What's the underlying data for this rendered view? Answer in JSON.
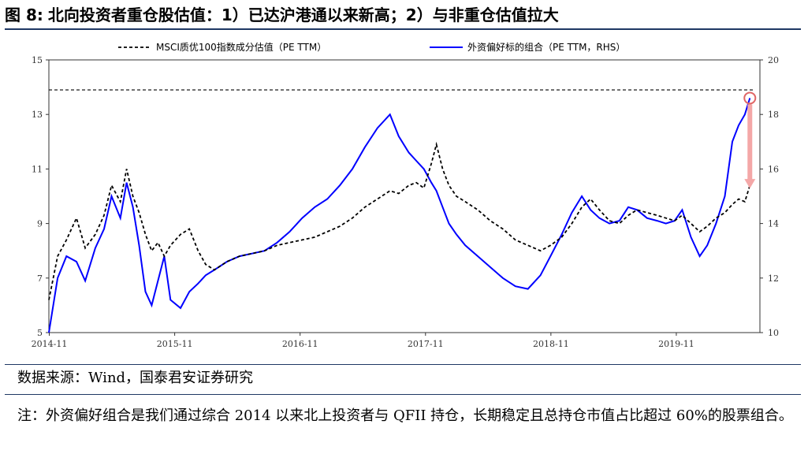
{
  "figure": {
    "number": "图 8:",
    "title": "北向投资者重仓股估值：1）已达沪港通以来新高；2）与非重仓估值拉大"
  },
  "source": "数据来源：Wind，国泰君安证券研究",
  "note": "注：外资偏好组合是我们通过综合 2014 以来北上投资者与 QFII 持仓，长期稳定且总持仓市值占比超过 60%的股票组合。",
  "colors": {
    "msci": "#000000",
    "foreign": "#0000ff",
    "highlight": "#e06666",
    "arrow": "#f4a7a7"
  },
  "chart_data": {
    "type": "line",
    "x_ticks": [
      "2014-11",
      "2015-11",
      "2016-11",
      "2017-11",
      "2018-11",
      "2019-11"
    ],
    "y_left": {
      "min": 5,
      "max": 15,
      "ticks": [
        5,
        7,
        9,
        11,
        13,
        15
      ]
    },
    "y_right": {
      "min": 10,
      "max": 20,
      "ticks": [
        10,
        12,
        14,
        16,
        18,
        20
      ]
    },
    "legend_position": "top",
    "reference_line": {
      "axis": "left",
      "value": 13.9,
      "style": "dashed"
    },
    "series": [
      {
        "name": "MSCI质优100指数成分估值（PE TTM）",
        "axis": "left",
        "style": "dashed",
        "x": [
          2014.83,
          2014.9,
          2014.97,
          2015.05,
          2015.12,
          2015.2,
          2015.27,
          2015.33,
          2015.4,
          2015.45,
          2015.5,
          2015.55,
          2015.6,
          2015.65,
          2015.7,
          2015.75,
          2015.8,
          2015.88,
          2015.95,
          2016.02,
          2016.08,
          2016.15,
          2016.25,
          2016.35,
          2016.45,
          2016.55,
          2016.65,
          2016.75,
          2016.85,
          2016.95,
          2017.05,
          2017.15,
          2017.25,
          2017.35,
          2017.45,
          2017.55,
          2017.62,
          2017.7,
          2017.76,
          2017.82,
          2017.88,
          2017.92,
          2017.97,
          2018.02,
          2018.08,
          2018.15,
          2018.25,
          2018.35,
          2018.45,
          2018.55,
          2018.65,
          2018.75,
          2018.83,
          2018.92,
          2019.0,
          2019.08,
          2019.15,
          2019.22,
          2019.3,
          2019.38,
          2019.45,
          2019.52,
          2019.6,
          2019.68,
          2019.75,
          2019.82,
          2019.88,
          2019.95,
          2020.02,
          2020.08,
          2020.15,
          2020.22,
          2020.28,
          2020.33,
          2020.38,
          2020.42
        ],
        "values": [
          6.2,
          7.8,
          8.4,
          9.2,
          8.1,
          8.6,
          9.3,
          10.4,
          9.8,
          11.0,
          10.0,
          9.4,
          8.6,
          8.0,
          8.3,
          7.8,
          8.2,
          8.6,
          8.8,
          8.0,
          7.5,
          7.3,
          7.6,
          7.8,
          7.9,
          8.0,
          8.2,
          8.3,
          8.4,
          8.5,
          8.7,
          8.9,
          9.2,
          9.6,
          9.9,
          10.2,
          10.1,
          10.4,
          10.5,
          10.3,
          11.2,
          11.9,
          11.0,
          10.4,
          10.0,
          9.8,
          9.5,
          9.1,
          8.8,
          8.4,
          8.2,
          8.0,
          8.2,
          8.5,
          9.0,
          9.6,
          9.9,
          9.5,
          9.1,
          9.0,
          9.3,
          9.5,
          9.4,
          9.3,
          9.2,
          9.1,
          9.3,
          9.0,
          8.7,
          8.9,
          9.2,
          9.4,
          9.7,
          9.9,
          9.8,
          10.4
        ]
      },
      {
        "name": "外资偏好标的组合（PE TTM，RHS）",
        "axis": "right",
        "style": "solid",
        "x": [
          2014.83,
          2014.9,
          2014.97,
          2015.05,
          2015.12,
          2015.2,
          2015.27,
          2015.33,
          2015.4,
          2015.45,
          2015.5,
          2015.55,
          2015.6,
          2015.65,
          2015.7,
          2015.75,
          2015.8,
          2015.88,
          2015.95,
          2016.02,
          2016.08,
          2016.15,
          2016.25,
          2016.35,
          2016.45,
          2016.55,
          2016.65,
          2016.75,
          2016.85,
          2016.95,
          2017.05,
          2017.15,
          2017.25,
          2017.35,
          2017.45,
          2017.55,
          2017.62,
          2017.7,
          2017.76,
          2017.82,
          2017.88,
          2017.92,
          2017.97,
          2018.02,
          2018.08,
          2018.15,
          2018.25,
          2018.35,
          2018.45,
          2018.55,
          2018.65,
          2018.75,
          2018.83,
          2018.92,
          2019.0,
          2019.08,
          2019.15,
          2019.22,
          2019.3,
          2019.38,
          2019.45,
          2019.52,
          2019.6,
          2019.68,
          2019.75,
          2019.82,
          2019.88,
          2019.95,
          2020.02,
          2020.08,
          2020.15,
          2020.22,
          2020.28,
          2020.33,
          2020.38,
          2020.42
        ],
        "values": [
          10.0,
          12.0,
          12.8,
          12.6,
          11.9,
          13.1,
          13.8,
          15.0,
          14.2,
          15.5,
          14.6,
          13.2,
          11.5,
          11.0,
          11.9,
          12.8,
          11.2,
          10.9,
          11.5,
          11.8,
          12.1,
          12.3,
          12.6,
          12.8,
          12.9,
          13.0,
          13.3,
          13.7,
          14.2,
          14.6,
          14.9,
          15.4,
          16.0,
          16.8,
          17.5,
          18.0,
          17.2,
          16.6,
          16.3,
          16.0,
          15.5,
          15.2,
          14.6,
          14.0,
          13.6,
          13.2,
          12.8,
          12.4,
          12.0,
          11.7,
          11.6,
          12.1,
          12.8,
          13.6,
          14.4,
          15.0,
          14.5,
          14.2,
          14.0,
          14.1,
          14.6,
          14.5,
          14.2,
          14.1,
          14.0,
          14.1,
          14.5,
          13.5,
          12.8,
          13.2,
          14.0,
          15.0,
          17.0,
          17.6,
          18.0,
          18.6
        ]
      }
    ]
  }
}
